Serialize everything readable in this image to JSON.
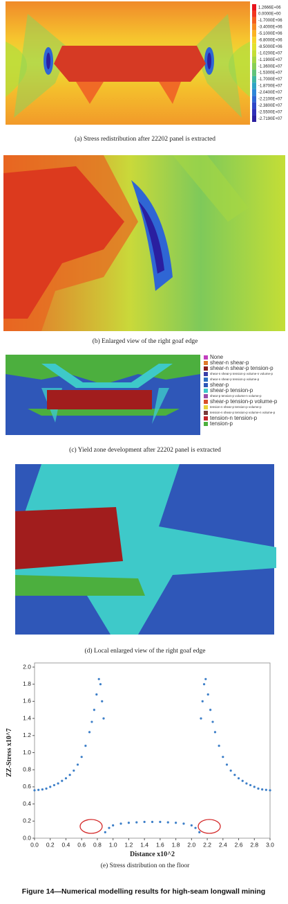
{
  "panel_a": {
    "caption": "(a) Stress redistribution after 22202 panel is extracted",
    "legend": [
      {
        "label": "1.2666E+06",
        "color": "#e8141c"
      },
      {
        "label": "0.0000E+00",
        "color": "#f2361e"
      },
      {
        "label": "-1.7000E+06",
        "color": "#f4601f"
      },
      {
        "label": "-3.4000E+06",
        "color": "#f78a21"
      },
      {
        "label": "-5.1000E+06",
        "color": "#fbb323"
      },
      {
        "label": "-6.8000E+06",
        "color": "#f7d42a"
      },
      {
        "label": "-8.5000E+06",
        "color": "#e2e22d"
      },
      {
        "label": "-1.0200E+07",
        "color": "#c4de36"
      },
      {
        "label": "-1.1900E+07",
        "color": "#a6d743"
      },
      {
        "label": "-1.3600E+07",
        "color": "#87cf55"
      },
      {
        "label": "-1.5300E+07",
        "color": "#62c37a"
      },
      {
        "label": "-1.7000E+07",
        "color": "#3fb7a3"
      },
      {
        "label": "-1.8700E+07",
        "color": "#2fa4c6"
      },
      {
        "label": "-2.0400E+07",
        "color": "#2e86d8"
      },
      {
        "label": "-2.2100E+07",
        "color": "#2f66d4"
      },
      {
        "label": "-2.3800E+07",
        "color": "#2f47c9"
      },
      {
        "label": "-2.5500E+07",
        "color": "#2f2fb8"
      },
      {
        "label": "-2.7190E+07",
        "color": "#2a1fa0"
      }
    ]
  },
  "panel_b": {
    "caption": "(b) Enlarged view of the right goaf edge"
  },
  "panel_c": {
    "caption": "(c) Yield zone development after 22202 panel is extracted",
    "legend": [
      {
        "label": "None",
        "color": "#c23fbf"
      },
      {
        "label": "shear-n shear-p",
        "color": "#e07a2a"
      },
      {
        "label": "shear-n shear-p tension-p",
        "color": "#8a1d1d"
      },
      {
        "label": "shear-n shear-p tension-p volume-n volume-p",
        "color": "#3b3fa8"
      },
      {
        "label": "shear-n shear-p tension-p volume-p",
        "color": "#2d6fc0"
      },
      {
        "label": "shear-p",
        "color": "#2f57b8"
      },
      {
        "label": "shear-p tension-p",
        "color": "#3ec9c9"
      },
      {
        "label": "shear-p tension-p volume-n volume-p",
        "color": "#9a4ea8"
      },
      {
        "label": "shear-p tension-p volume-p",
        "color": "#d84f2a"
      },
      {
        "label": "tension-n shear-p tension-p volume-p",
        "color": "#e6d23a"
      },
      {
        "label": "tension-n shear-p tension-p volume-n volume-p",
        "color": "#7a3a3a"
      },
      {
        "label": "tension-n tension-p",
        "color": "#c2222a"
      },
      {
        "label": "tension-p",
        "color": "#4caf3e"
      }
    ]
  },
  "panel_d": {
    "caption": "(d) Local enlarged view of the right goaf edge"
  },
  "chart_data": {
    "type": "scatter",
    "caption": "(e) Stress distribution on the floor",
    "x_label": "Distance x10^2",
    "y_label": "ZZ-Stress x10^7",
    "xlim": [
      0,
      3
    ],
    "ylim": [
      0,
      2
    ],
    "xticks": [
      {
        "value": 0,
        "label": "0.0"
      },
      0.2,
      0.4,
      0.6,
      0.8,
      {
        "value": 1,
        "label": "1.0"
      },
      1.2,
      1.4,
      1.6,
      1.8,
      {
        "value": 2,
        "label": "2.0"
      },
      2.2,
      2.4,
      2.6,
      2.8,
      {
        "value": 3,
        "label": "3.0"
      }
    ],
    "yticks": [
      {
        "value": 0,
        "label": "0.0"
      },
      0.2,
      0.4,
      0.6,
      0.8,
      {
        "value": 1,
        "label": "1.0"
      },
      1.2,
      1.4,
      1.6,
      1.8,
      {
        "value": 2,
        "label": "2.0"
      }
    ],
    "series": [
      {
        "color": "#3d7fc8",
        "x": [
          0.0,
          0.05,
          0.1,
          0.15,
          0.2,
          0.25,
          0.3,
          0.35,
          0.4,
          0.45,
          0.5,
          0.55,
          0.6,
          0.65,
          0.7,
          0.73,
          0.76,
          0.79,
          0.82,
          0.84,
          0.86,
          0.88
        ],
        "values": [
          0.56,
          0.565,
          0.57,
          0.58,
          0.6,
          0.62,
          0.64,
          0.67,
          0.7,
          0.74,
          0.79,
          0.86,
          0.95,
          1.08,
          1.24,
          1.36,
          1.5,
          1.68,
          1.86,
          1.8,
          1.6,
          1.4
        ]
      },
      {
        "color": "#3d7fc8",
        "x": [
          2.12,
          2.14,
          2.16,
          2.18,
          2.21,
          2.24,
          2.27,
          2.3,
          2.35,
          2.4,
          2.45,
          2.5,
          2.55,
          2.6,
          2.65,
          2.7,
          2.75,
          2.8,
          2.85,
          2.9,
          2.95,
          3.0
        ],
        "values": [
          1.4,
          1.6,
          1.8,
          1.86,
          1.68,
          1.5,
          1.36,
          1.24,
          1.08,
          0.95,
          0.86,
          0.79,
          0.74,
          0.7,
          0.67,
          0.64,
          0.62,
          0.6,
          0.58,
          0.57,
          0.565,
          0.56
        ]
      },
      {
        "color": "#3d7fc8",
        "x": [
          0.9,
          0.95,
          1.0,
          1.1,
          1.2,
          1.3,
          1.4,
          1.5,
          1.6,
          1.7,
          1.8,
          1.9,
          2.0,
          2.05,
          2.1
        ],
        "values": [
          0.07,
          0.12,
          0.15,
          0.17,
          0.18,
          0.185,
          0.19,
          0.19,
          0.19,
          0.185,
          0.18,
          0.17,
          0.15,
          0.12,
          0.07
        ]
      }
    ]
  },
  "figure_caption": "Figure 14—Numerical modelling results for high-seam longwall mining"
}
